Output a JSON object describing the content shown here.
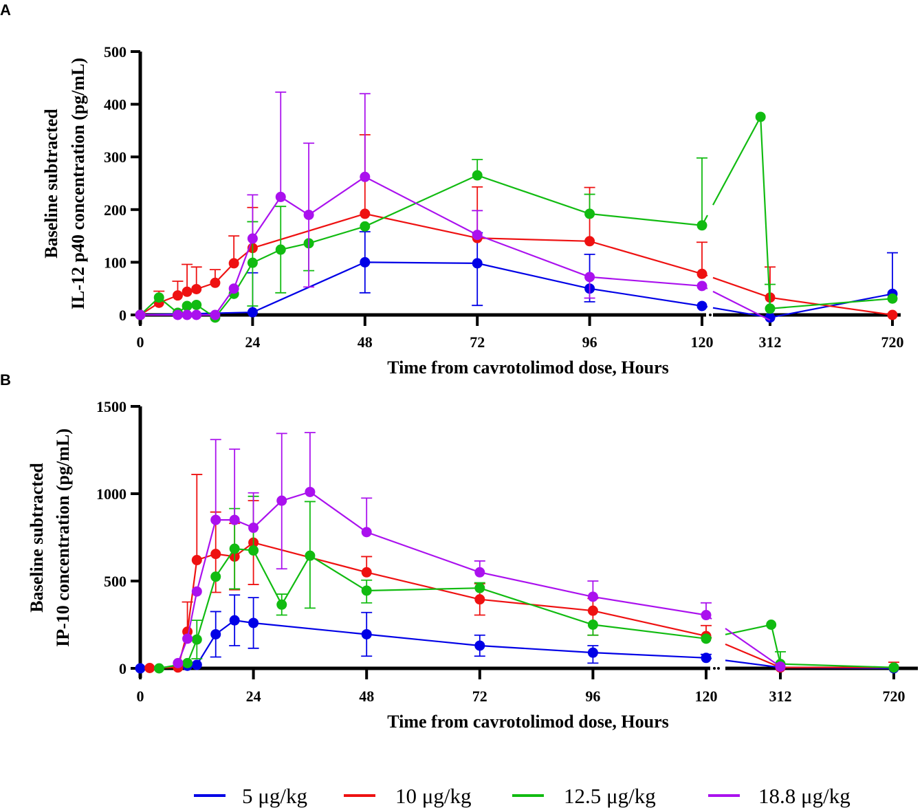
{
  "legend": [
    {
      "label": "5 μg/kg",
      "color": "#0000e6"
    },
    {
      "label": "10 μg/kg",
      "color": "#ee1111"
    },
    {
      "label": "12.5 μg/kg",
      "color": "#11bb11"
    },
    {
      "label": "18.8 μg/kg",
      "color": "#aa11ee"
    }
  ],
  "chart_data": [
    {
      "panel": "A",
      "type": "line",
      "xlabel": "Time from cavrotolimod dose,  Hours",
      "ylabel_line1": "Baseline subtracted",
      "ylabel_line2": "IL-12  p40 concentration (pg/mL)",
      "ylim": [
        0,
        500
      ],
      "yticks": [
        0,
        100,
        200,
        300,
        400,
        500
      ],
      "ytick_labels": [
        "0",
        "100",
        "200",
        "300",
        "400",
        "500"
      ],
      "x_segment1_range": [
        0,
        120
      ],
      "xticks_segment1": [
        0,
        24,
        48,
        72,
        96,
        120
      ],
      "xtick_labels_segment1": [
        "0",
        "24",
        "48",
        "72",
        "96",
        "120"
      ],
      "xticks_segment2": [
        312,
        720
      ],
      "xtick_labels_segment2": [
        "312",
        "720"
      ],
      "series": [
        {
          "name": "5 μg/kg",
          "color": "#0000e6",
          "x": [
            0,
            24,
            48,
            72,
            96,
            120,
            312,
            720
          ],
          "y": [
            0,
            5,
            100,
            98,
            50,
            17,
            -5,
            40
          ],
          "err_upper": [
            0,
            75,
            58,
            58,
            65,
            0,
            0,
            78
          ],
          "err_lower": [
            0,
            0,
            58,
            80,
            25,
            0,
            0,
            0
          ]
        },
        {
          "name": "10 μg/kg",
          "color": "#ee1111",
          "x": [
            0,
            4,
            8,
            10,
            12,
            16,
            20,
            24,
            48,
            72,
            96,
            120,
            312,
            720
          ],
          "y": [
            0,
            23,
            37,
            44,
            49,
            61,
            98,
            127,
            192,
            146,
            140,
            78,
            33,
            0
          ],
          "err_upper": [
            0,
            22,
            27,
            52,
            42,
            25,
            52,
            77,
            150,
            97,
            102,
            60,
            58,
            0
          ],
          "err_lower": [
            0,
            0,
            0,
            0,
            0,
            0,
            0,
            0,
            0,
            0,
            0,
            0,
            0,
            0
          ]
        },
        {
          "name": "12.5 μg/kg",
          "color": "#11bb11",
          "x": [
            0,
            4,
            8,
            10,
            12,
            16,
            20,
            24,
            30,
            36,
            48,
            72,
            96,
            120,
            280,
            312,
            720
          ],
          "y": [
            0,
            33,
            4,
            17,
            19,
            -5,
            40,
            99,
            124,
            136,
            168,
            265,
            192,
            170,
            376,
            12,
            31
          ],
          "err_upper": [
            0,
            0,
            0,
            0,
            0,
            0,
            0,
            78,
            82,
            0,
            0,
            30,
            37,
            128,
            0,
            46,
            0
          ],
          "err_lower": [
            0,
            0,
            0,
            0,
            0,
            0,
            0,
            82,
            82,
            52,
            0,
            0,
            0,
            0,
            0,
            0,
            0
          ],
          "break_gap_after_index": 13
        },
        {
          "name": "18.8 μg/kg",
          "color": "#aa11ee",
          "x": [
            0,
            8,
            10,
            12,
            16,
            20,
            24,
            30,
            36,
            48,
            72,
            96,
            120,
            312
          ],
          "y": [
            0,
            0,
            0,
            0,
            0,
            50,
            145,
            224,
            190,
            262,
            152,
            72,
            55,
            -10
          ],
          "err_upper": [
            0,
            0,
            0,
            0,
            0,
            0,
            83,
            199,
            136,
            158,
            46,
            0,
            0,
            0
          ],
          "err_lower": [
            0,
            0,
            0,
            0,
            0,
            0,
            0,
            0,
            137,
            0,
            0,
            40,
            0,
            0
          ]
        }
      ]
    },
    {
      "panel": "B",
      "type": "line",
      "xlabel": "Time from cavrotolimod dose,  Hours",
      "ylabel_line1": "Baseline subtracted",
      "ylabel_line2": "IP-10 concentration (pg/mL)",
      "ylim": [
        0,
        1500
      ],
      "yticks": [
        0,
        500,
        1000,
        1500
      ],
      "ytick_labels": [
        "0",
        "500",
        "1000",
        "1500"
      ],
      "x_segment1_range": [
        0,
        120
      ],
      "xticks_segment1": [
        0,
        24,
        48,
        72,
        96,
        120
      ],
      "xtick_labels_segment1": [
        "0",
        "24",
        "48",
        "72",
        "96",
        "120"
      ],
      "xticks_segment2": [
        312,
        720
      ],
      "xtick_labels_segment2": [
        "312",
        "720"
      ],
      "series": [
        {
          "name": "5 μg/kg",
          "color": "#0000e6",
          "x": [
            0,
            8,
            10,
            12,
            16,
            20,
            24,
            48,
            72,
            96,
            120,
            312,
            720
          ],
          "y": [
            0,
            10,
            15,
            20,
            195,
            275,
            260,
            195,
            130,
            90,
            60,
            5,
            0
          ],
          "err_upper": [
            0,
            0,
            0,
            0,
            130,
            145,
            145,
            125,
            60,
            40,
            20,
            0,
            0
          ],
          "err_lower": [
            0,
            0,
            0,
            0,
            130,
            145,
            145,
            125,
            60,
            60,
            0,
            0,
            0
          ]
        },
        {
          "name": "10 μg/kg",
          "color": "#ee1111",
          "x": [
            2,
            8,
            10,
            12,
            16,
            20,
            24,
            48,
            72,
            96,
            120,
            312,
            720
          ],
          "y": [
            2,
            5,
            210,
            620,
            655,
            640,
            720,
            550,
            395,
            330,
            185,
            5,
            5
          ],
          "err_upper": [
            0,
            0,
            170,
            490,
            240,
            190,
            240,
            90,
            90,
            70,
            60,
            0,
            30
          ],
          "err_lower": [
            0,
            0,
            0,
            0,
            220,
            190,
            240,
            0,
            90,
            140,
            0,
            0,
            0
          ]
        },
        {
          "name": "12.5 μg/kg",
          "color": "#11bb11",
          "x": [
            4,
            10,
            12,
            16,
            20,
            24,
            30,
            36,
            48,
            72,
            96,
            120,
            280,
            312,
            720
          ],
          "y": [
            0,
            30,
            165,
            525,
            685,
            675,
            365,
            645,
            445,
            460,
            250,
            170,
            250,
            25,
            5
          ],
          "err_upper": [
            0,
            0,
            110,
            0,
            230,
            310,
            60,
            310,
            60,
            30,
            0,
            0,
            0,
            70,
            0
          ],
          "err_lower": [
            0,
            0,
            110,
            0,
            230,
            0,
            60,
            300,
            70,
            0,
            60,
            0,
            0,
            0,
            0
          ],
          "break_gap_after_index": 11
        },
        {
          "name": "18.8 μg/kg",
          "color": "#aa11ee",
          "x": [
            8,
            10,
            12,
            16,
            20,
            24,
            30,
            36,
            48,
            72,
            96,
            120,
            312
          ],
          "y": [
            30,
            170,
            440,
            850,
            850,
            805,
            960,
            1010,
            780,
            550,
            410,
            305,
            10
          ],
          "err_upper": [
            0,
            0,
            0,
            460,
            405,
            200,
            385,
            340,
            195,
            65,
            90,
            70,
            0
          ],
          "err_lower": [
            0,
            0,
            0,
            0,
            0,
            0,
            390,
            0,
            0,
            0,
            0,
            0,
            0
          ]
        }
      ]
    }
  ]
}
